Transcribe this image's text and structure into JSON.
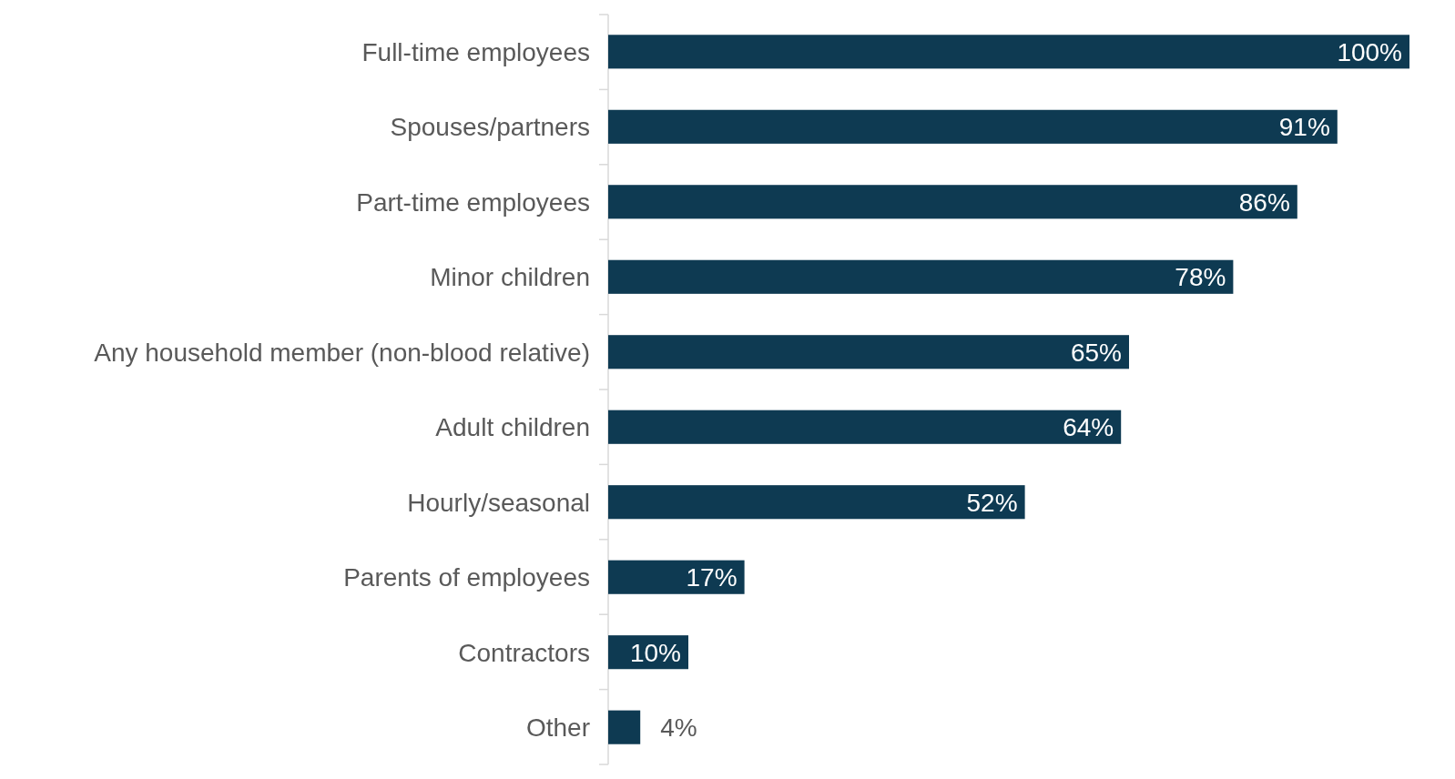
{
  "chart_data": {
    "type": "bar",
    "orientation": "horizontal",
    "categories": [
      "Full-time employees",
      "Spouses/partners",
      "Part-time employees",
      "Minor children",
      "Any household member (non-blood relative)",
      "Adult children",
      "Hourly/seasonal",
      "Parents of employees",
      "Contractors",
      "Other"
    ],
    "values": [
      100,
      91,
      86,
      78,
      65,
      64,
      52,
      17,
      10,
      4
    ],
    "color": "#0e3a52",
    "value_labels": [
      "100%",
      "91%",
      "86%",
      "78%",
      "65%",
      "64%",
      "52%",
      "17%",
      "10%",
      "4%"
    ]
  }
}
